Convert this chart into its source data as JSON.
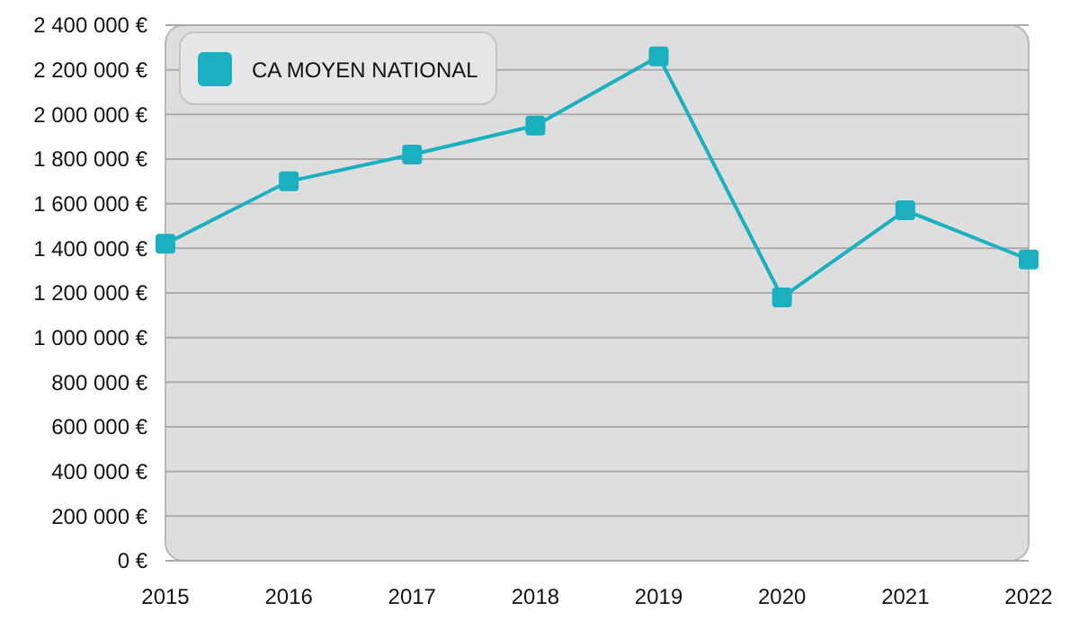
{
  "chart_data": {
    "type": "line",
    "categories": [
      "2015",
      "2016",
      "2017",
      "2018",
      "2019",
      "2020",
      "2021",
      "2022"
    ],
    "series": [
      {
        "name": "CA MOYEN NATIONAL",
        "color": "#1ab0c0",
        "values": [
          1420000,
          1700000,
          1820000,
          1950000,
          2260000,
          1180000,
          1570000,
          1350000
        ]
      }
    ],
    "ylim": [
      0,
      2400000
    ],
    "yticks": [
      {
        "value": 0,
        "label": "0 €"
      },
      {
        "value": 200000,
        "label": "200 000 €"
      },
      {
        "value": 400000,
        "label": "400 000 €"
      },
      {
        "value": 600000,
        "label": "600 000 €"
      },
      {
        "value": 800000,
        "label": "800 000 €"
      },
      {
        "value": 1000000,
        "label": "1 000 000 €"
      },
      {
        "value": 1200000,
        "label": "1 200 000 €"
      },
      {
        "value": 1400000,
        "label": "1 400 000 €"
      },
      {
        "value": 1600000,
        "label": "1 600 000 €"
      },
      {
        "value": 1800000,
        "label": "1 800 000 €"
      },
      {
        "value": 2000000,
        "label": "2 000 000 €"
      },
      {
        "value": 2200000,
        "label": "2 200 000 €"
      },
      {
        "value": 2400000,
        "label": "2 400 000 €"
      }
    ],
    "grid": "y",
    "legend": "top left",
    "marker": "square",
    "line_style": "solid"
  }
}
